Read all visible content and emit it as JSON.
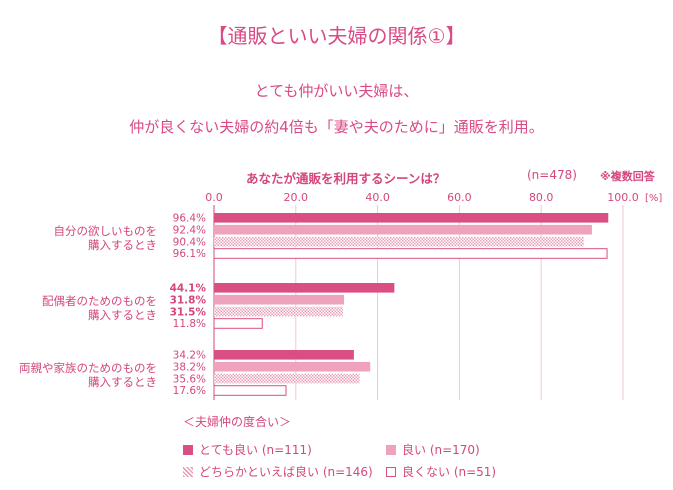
{
  "header": {
    "title": "【通販といい夫婦の関係①】",
    "subtitle_line1": "とても仲がいい夫婦は、",
    "subtitle_line2": "仲が良くない夫婦の約4倍も「妻や夫のために」通販を利用。"
  },
  "chart_data": {
    "type": "bar",
    "orientation": "horizontal",
    "title": "あなたが通販を利用するシーンは？",
    "sample_size": "(n=478)",
    "note": "※複数回答",
    "unit_label": "[%]",
    "xlim": [
      0,
      100
    ],
    "ticks": [
      "0.0",
      "20.0",
      "40.0",
      "60.0",
      "80.0",
      "100.0"
    ],
    "categories": [
      [
        "自分の欲しいものを",
        "購入するとき"
      ],
      [
        "配偶者のためのものを",
        "購入するとき"
      ],
      [
        "両親や家族のためのものを",
        "購入するとき"
      ]
    ],
    "series": [
      {
        "name": "とても良い (n=111)",
        "values": [
          96.4,
          44.1,
          34.2
        ],
        "labels": [
          "96.4%",
          "44.1%",
          "34.2%"
        ],
        "color": "#d94f83",
        "style": "solid"
      },
      {
        "name": "良い (n=170)",
        "values": [
          92.4,
          31.8,
          38.2
        ],
        "labels": [
          "92.4%",
          "31.8%",
          "38.2%"
        ],
        "color": "#efa2be",
        "style": "solid"
      },
      {
        "name": "どちらかといえば良い (n=146)",
        "values": [
          90.4,
          31.5,
          35.6
        ],
        "labels": [
          "90.4%",
          "31.5%",
          "35.6%"
        ],
        "color": "#e7a0ba",
        "style": "hatch"
      },
      {
        "name": "良くない (n=51)",
        "values": [
          96.1,
          11.8,
          17.6
        ],
        "labels": [
          "96.1%",
          "11.8%",
          "17.6%"
        ],
        "color": "#d94f83",
        "style": "outline"
      }
    ],
    "bold_labels": [
      false,
      true,
      false
    ],
    "legend_title": "＜夫婦仲の度合い＞",
    "legend_position": "bottom"
  }
}
